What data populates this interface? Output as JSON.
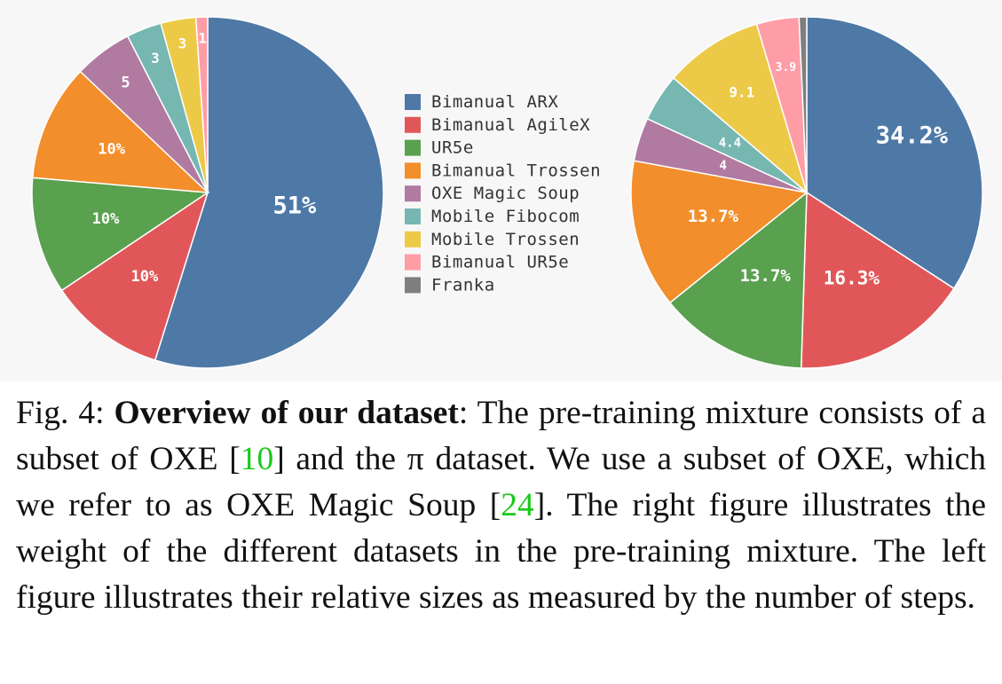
{
  "legend": [
    {
      "label": "Bimanual ARX",
      "color": "#4e79a7"
    },
    {
      "label": "Bimanual AgileX",
      "color": "#e15759"
    },
    {
      "label": "UR5e",
      "color": "#59a14f"
    },
    {
      "label": "Bimanual Trossen",
      "color": "#f28e2b"
    },
    {
      "label": "OXE Magic Soup",
      "color": "#b07aa1"
    },
    {
      "label": "Mobile Fibocom",
      "color": "#76b7b2"
    },
    {
      "label": "Mobile Trossen",
      "color": "#edc948"
    },
    {
      "label": "Bimanual UR5e",
      "color": "#ff9da7"
    },
    {
      "label": "Franka",
      "color": "#7f7f7f"
    }
  ],
  "chart_data": [
    {
      "type": "pie",
      "categories": [
        "Bimanual ARX",
        "Bimanual AgileX",
        "UR5e",
        "Bimanual Trossen",
        "OXE Magic Soup",
        "Mobile Fibocom",
        "Mobile Trossen",
        "Bimanual UR5e"
      ],
      "values": [
        51,
        10,
        10,
        10,
        5,
        3,
        3,
        1
      ],
      "labels": [
        "51%",
        "10%",
        "10%",
        "10%",
        "5",
        "3",
        "3",
        "1"
      ]
    },
    {
      "type": "pie",
      "categories": [
        "Bimanual ARX",
        "Bimanual AgileX",
        "UR5e",
        "Bimanual Trossen",
        "OXE Magic Soup",
        "Mobile Fibocom",
        "Mobile Trossen",
        "Bimanual UR5e",
        "Franka"
      ],
      "values": [
        34.2,
        16.3,
        13.7,
        13.7,
        4,
        4.4,
        9.1,
        3.9,
        0.7
      ],
      "labels": [
        "34.2%",
        "16.3%",
        "13.7%",
        "13.7%",
        "4",
        "4.4",
        "9.1",
        "3.9",
        ""
      ]
    }
  ],
  "caption": {
    "prefix": "Fig. 4: ",
    "title": "Overview of our dataset",
    "part1": ": The pre-training mixture consists of a subset of OXE [",
    "cite1": "10",
    "part2": "] and the π dataset. We use a subset of OXE, which we refer to as OXE Magic Soup [",
    "cite2": "24",
    "part3": "]. The right figure illustrates the weight of the different datasets in the pre-training mixture. The left figure illustrates their relative sizes as measured by the number of steps."
  }
}
